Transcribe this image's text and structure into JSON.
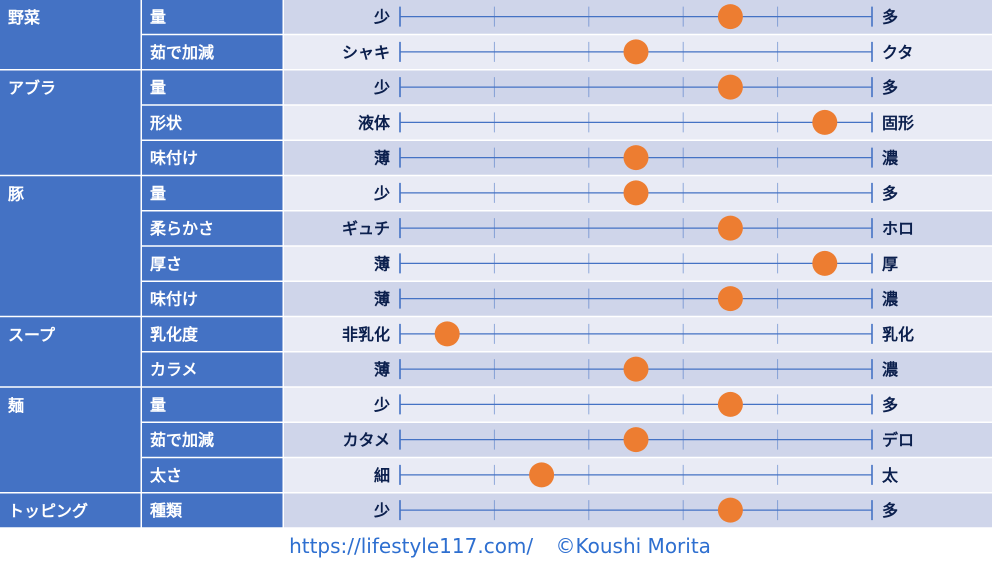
{
  "chart_data": {
    "type": "table",
    "scale": {
      "min": 1,
      "max": 6
    },
    "colors": {
      "group_cell": "#4472c4",
      "row_band_dark": "#cfd5ea",
      "row_band_light": "#e9ebf5",
      "axis_line": "#4472c4",
      "dot": "#ed7d31",
      "label_text": "#0b1f4d",
      "cell_text": "#ffffff"
    },
    "groups": [
      {
        "name": "野菜",
        "rows": [
          {
            "label": "量",
            "left": "少",
            "right": "多",
            "value": 4.5
          },
          {
            "label": "茹で加減",
            "left": "シャキ",
            "right": "クタ",
            "value": 3.5
          }
        ]
      },
      {
        "name": "アブラ",
        "rows": [
          {
            "label": "量",
            "left": "少",
            "right": "多",
            "value": 4.5
          },
          {
            "label": "形状",
            "left": "液体",
            "right": "固形",
            "value": 5.5
          },
          {
            "label": "味付け",
            "left": "薄",
            "right": "濃",
            "value": 3.5
          }
        ]
      },
      {
        "name": "豚",
        "rows": [
          {
            "label": "量",
            "left": "少",
            "right": "多",
            "value": 3.5
          },
          {
            "label": "柔らかさ",
            "left": "ギュチ",
            "right": "ホロ",
            "value": 4.5
          },
          {
            "label": "厚さ",
            "left": "薄",
            "right": "厚",
            "value": 5.5
          },
          {
            "label": "味付け",
            "left": "薄",
            "right": "濃",
            "value": 4.5
          }
        ]
      },
      {
        "name": "スープ",
        "rows": [
          {
            "label": "乳化度",
            "left": "非乳化",
            "right": "乳化",
            "value": 1.5
          },
          {
            "label": "カラメ",
            "left": "薄",
            "right": "濃",
            "value": 3.5
          }
        ]
      },
      {
        "name": "麺",
        "rows": [
          {
            "label": "量",
            "left": "少",
            "right": "多",
            "value": 4.5
          },
          {
            "label": "茹で加減",
            "left": "カタメ",
            "right": "デロ",
            "value": 3.5
          },
          {
            "label": "太さ",
            "left": "細",
            "right": "太",
            "value": 2.5
          }
        ]
      },
      {
        "name": "トッピング",
        "rows": [
          {
            "label": "種類",
            "left": "少",
            "right": "多",
            "value": 4.5
          }
        ]
      }
    ]
  },
  "footer": {
    "url": "https://lifestyle117.com/",
    "credit": "©Koushi Morita"
  }
}
